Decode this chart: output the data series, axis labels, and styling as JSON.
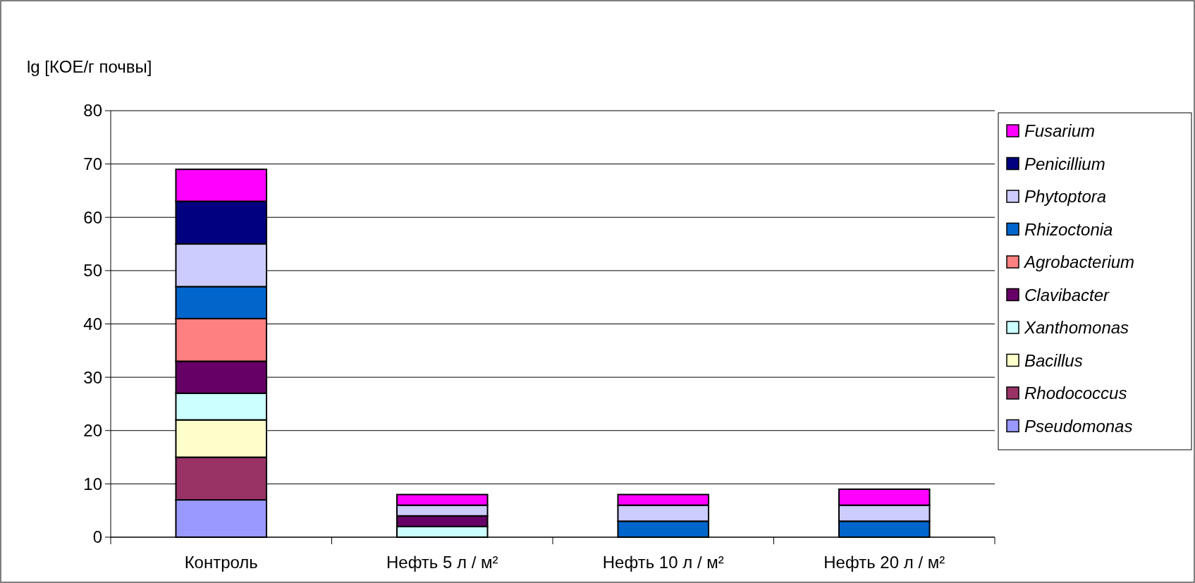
{
  "chart_data": {
    "type": "bar",
    "stacked": true,
    "ylabel": "lg [КОЕ/г почвы]",
    "categories": [
      "Контроль",
      "Нефть 5 л / м²",
      "Нефть 10 л / м²",
      "Нефть 20 л / м²"
    ],
    "ylim": [
      0,
      80
    ],
    "yticks": [
      0,
      10,
      20,
      30,
      40,
      50,
      60,
      70,
      80
    ],
    "grid": "y",
    "legend": "right",
    "series": [
      {
        "name": "Pseudomonas",
        "color": "#9999ff",
        "values": [
          7,
          0,
          0,
          0
        ]
      },
      {
        "name": "Rhodococcus",
        "color": "#993366",
        "values": [
          8,
          0,
          0,
          0
        ]
      },
      {
        "name": "Bacillus",
        "color": "#ffffcc",
        "values": [
          7,
          0,
          0,
          0
        ]
      },
      {
        "name": "Xanthomonas",
        "color": "#ccffff",
        "values": [
          5,
          2,
          0,
          0
        ]
      },
      {
        "name": "Clavibacter",
        "color": "#660066",
        "values": [
          6,
          2,
          0,
          0
        ]
      },
      {
        "name": "Agrobacterium",
        "color": "#ff8080",
        "values": [
          8,
          0,
          0,
          0
        ]
      },
      {
        "name": "Rhizoctonia",
        "color": "#0066cc",
        "values": [
          6,
          0,
          3,
          3
        ]
      },
      {
        "name": "Phytoptora",
        "color": "#ccccff",
        "values": [
          8,
          2,
          3,
          3
        ]
      },
      {
        "name": "Penicillium",
        "color": "#000080",
        "values": [
          8,
          0,
          0,
          0
        ]
      },
      {
        "name": "Fusarium",
        "color": "#ff00ff",
        "values": [
          6,
          2,
          2,
          3
        ]
      }
    ]
  }
}
